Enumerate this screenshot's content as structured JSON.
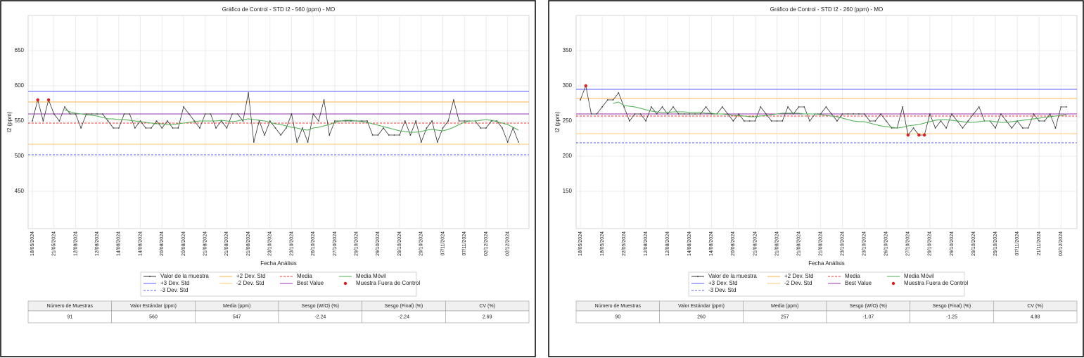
{
  "chart_data": [
    {
      "type": "control",
      "title": "Gráfico de Control - STD I2 - 560 (ppm) - MO",
      "x_label": "Fecha Análisis",
      "y_label": "I2 (ppm)",
      "categories": [
        "18/05/2024",
        null,
        null,
        null,
        "21/05/2024",
        null,
        null,
        null,
        "12/08/2024",
        null,
        null,
        null,
        "12/08/2024",
        null,
        null,
        null,
        "14/08/2024",
        null,
        null,
        null,
        "14/08/2024",
        null,
        null,
        null,
        "20/08/2024",
        null,
        null,
        null,
        "20/08/2024",
        null,
        null,
        null,
        "21/08/2024",
        null,
        null,
        null,
        "21/08/2024",
        null,
        null,
        null,
        "21/08/2024",
        null,
        null,
        null,
        "23/10/2024",
        null,
        null,
        null,
        "23/10/2024",
        null,
        null,
        null,
        "26/10/2024",
        null,
        null,
        null,
        "27/10/2024",
        null,
        null,
        null,
        "29/10/2024",
        null,
        null,
        null,
        "29/10/2024",
        null,
        null,
        null,
        "29/10/2024",
        null,
        null,
        null,
        "29/10/2024",
        null,
        null,
        null,
        "07/11/2024",
        null,
        null,
        null,
        "07/11/2024",
        null,
        null,
        null,
        "02/12/2024",
        null,
        null,
        null,
        "02/12/2024",
        null,
        null
      ],
      "series": [
        {
          "name": "Valor de la muestra",
          "kind": "line-marker",
          "color": "#333333",
          "values": [
            550,
            580,
            550,
            580,
            560,
            550,
            570,
            560,
            560,
            540,
            560,
            560,
            560,
            560,
            550,
            540,
            540,
            560,
            560,
            540,
            550,
            540,
            540,
            550,
            540,
            550,
            540,
            540,
            570,
            560,
            550,
            540,
            560,
            560,
            540,
            550,
            540,
            560,
            560,
            550,
            590,
            520,
            550,
            530,
            550,
            540,
            530,
            540,
            560,
            520,
            540,
            520,
            560,
            550,
            580,
            530,
            550,
            550,
            550,
            550,
            550,
            550,
            550,
            530,
            530,
            540,
            530,
            530,
            530,
            550,
            530,
            550,
            520,
            540,
            550,
            520,
            540,
            550,
            580,
            550,
            550,
            550,
            550,
            540,
            540,
            550,
            550,
            540,
            520,
            540,
            520
          ]
        },
        {
          "name": "Media Móvil",
          "kind": "line",
          "color": "#4caf50",
          "values": [
            null,
            null,
            null,
            null,
            null,
            null,
            566,
            563,
            561,
            560,
            559,
            558,
            557,
            555,
            553,
            553,
            552,
            552,
            551,
            550,
            549,
            548,
            547,
            546,
            546,
            545,
            545,
            546,
            547,
            548,
            549,
            550,
            550,
            550,
            550,
            551,
            550,
            549,
            550,
            552,
            553,
            552,
            551,
            550,
            548,
            546,
            545,
            543,
            541,
            540,
            538,
            537,
            540,
            541,
            543,
            545,
            548,
            550,
            551,
            551,
            550,
            549,
            548,
            546,
            544,
            542,
            540,
            538,
            536,
            535,
            534,
            534,
            535,
            537,
            538,
            537,
            536,
            538,
            541,
            545,
            548,
            550,
            550,
            551,
            552,
            551,
            549,
            547,
            545,
            541,
            537
          ]
        },
        {
          "name": "Muestra Fuera de Control",
          "kind": "marker",
          "color": "#e41a1c",
          "values": [
            null,
            580,
            null,
            580,
            null,
            null,
            null,
            null,
            null,
            null,
            null,
            null,
            null,
            null,
            null,
            null,
            null,
            null,
            null,
            null,
            null,
            null,
            null,
            null,
            null,
            null,
            null,
            null,
            null,
            null,
            null,
            null,
            null,
            null,
            null,
            null,
            null,
            null,
            null,
            null,
            null,
            null,
            null,
            null,
            null,
            null,
            null,
            null,
            null,
            null,
            null,
            null,
            null,
            null,
            null,
            null,
            null,
            null,
            null,
            null,
            null,
            null,
            null,
            null,
            null,
            null,
            null,
            null,
            null,
            null,
            null,
            null,
            null,
            null,
            null,
            null,
            null,
            null,
            null,
            null,
            null,
            null,
            null,
            null,
            null,
            null,
            null,
            null,
            null,
            null,
            null
          ]
        }
      ],
      "reference_lines": [
        {
          "name": "+3 Dev. Std",
          "color": "#5b5bff",
          "style": "solid",
          "value": 592
        },
        {
          "name": "-3 Dev. Std",
          "color": "#5b5bff",
          "style": "dashed",
          "value": 502
        },
        {
          "name": "+2 Dev. Std",
          "color": "#ffb347",
          "style": "solid",
          "value": 577
        },
        {
          "name": "-2 Dev. Std",
          "color": "#ffc875",
          "style": "solid",
          "value": 517
        },
        {
          "name": "Media",
          "color": "#ff3030",
          "style": "dashed",
          "value": 547
        },
        {
          "name": "Best Value",
          "color": "#9b30b0",
          "style": "solid",
          "value": 560
        }
      ],
      "ylim": [
        397,
        700
      ],
      "yticks": [
        450,
        500,
        550,
        600,
        650
      ],
      "grid": true
    },
    {
      "type": "control",
      "title": "Gráfico de Control - STD I2 - 260 (ppm) - MO",
      "x_label": "Fecha Análisis",
      "y_label": "I2 (ppm)",
      "categories": [
        "18/05/2024",
        null,
        null,
        null,
        "18/05/2024",
        null,
        null,
        null,
        "22/05/2024",
        null,
        null,
        null,
        "12/08/2024",
        null,
        null,
        null,
        "12/08/2024",
        null,
        null,
        null,
        "14/08/2024",
        null,
        null,
        null,
        "14/08/2024",
        null,
        null,
        null,
        "20/08/2024",
        null,
        null,
        null,
        "21/08/2024",
        null,
        null,
        null,
        "21/08/2024",
        null,
        null,
        null,
        "21/08/2024",
        null,
        null,
        null,
        "21/08/2024",
        null,
        null,
        null,
        "23/10/2024",
        null,
        null,
        null,
        "23/10/2024",
        null,
        null,
        null,
        "26/10/2024",
        null,
        null,
        null,
        "27/10/2024",
        null,
        null,
        null,
        "29/10/2024",
        null,
        null,
        null,
        "29/10/2024",
        null,
        null,
        null,
        "29/10/2024",
        null,
        null,
        null,
        "29/10/2024",
        null,
        null,
        null,
        "07/11/2024",
        null,
        null,
        null,
        "21/11/2024",
        null,
        null,
        null,
        "02/12/2024",
        null
      ],
      "series": [
        {
          "name": "Valor de la muestra",
          "kind": "line-marker",
          "color": "#333333",
          "values": [
            280,
            300,
            260,
            260,
            270,
            280,
            280,
            290,
            270,
            250,
            260,
            260,
            250,
            270,
            260,
            270,
            260,
            270,
            260,
            260,
            260,
            260,
            260,
            270,
            260,
            260,
            270,
            260,
            250,
            260,
            250,
            250,
            250,
            270,
            260,
            250,
            250,
            250,
            270,
            260,
            270,
            270,
            250,
            260,
            260,
            270,
            260,
            250,
            260,
            260,
            260,
            260,
            260,
            250,
            250,
            260,
            250,
            240,
            240,
            270,
            230,
            240,
            230,
            230,
            260,
            240,
            250,
            240,
            260,
            250,
            240,
            250,
            260,
            270,
            250,
            250,
            240,
            260,
            250,
            240,
            250,
            240,
            240,
            260,
            250,
            250,
            260,
            240,
            270,
            270
          ]
        },
        {
          "name": "Media Móvil",
          "kind": "line",
          "color": "#4caf50",
          "values": [
            null,
            null,
            null,
            null,
            null,
            null,
            275,
            277,
            272,
            271,
            270,
            268,
            266,
            264,
            263,
            262,
            262,
            263,
            263,
            263,
            262,
            262,
            262,
            261,
            261,
            260,
            260,
            259,
            258,
            258,
            257,
            256,
            256,
            257,
            258,
            259,
            260,
            261,
            261,
            261,
            261,
            260,
            260,
            260,
            259,
            258,
            257,
            256,
            254,
            252,
            250,
            249,
            249,
            247,
            245,
            243,
            242,
            241,
            240,
            241,
            243,
            244,
            245,
            247,
            249,
            251,
            252,
            252,
            251,
            250,
            249,
            248,
            248,
            249,
            250,
            250,
            249,
            248,
            248,
            249,
            250,
            251,
            252,
            253,
            254,
            255,
            256,
            257,
            258,
            259
          ]
        },
        {
          "name": "Muestra Fuera de Control",
          "kind": "marker",
          "color": "#e41a1c",
          "values": [
            null,
            300,
            null,
            null,
            null,
            null,
            null,
            null,
            null,
            null,
            null,
            null,
            null,
            null,
            null,
            null,
            null,
            null,
            null,
            null,
            null,
            null,
            null,
            null,
            null,
            null,
            null,
            null,
            null,
            null,
            null,
            null,
            null,
            null,
            null,
            null,
            null,
            null,
            null,
            null,
            null,
            null,
            null,
            null,
            null,
            null,
            null,
            null,
            null,
            null,
            null,
            null,
            null,
            null,
            null,
            null,
            null,
            null,
            null,
            null,
            230,
            null,
            230,
            230,
            null,
            null,
            null,
            null,
            null,
            null,
            null,
            null,
            null,
            null,
            null,
            null,
            null,
            null,
            null,
            null,
            null,
            null,
            null,
            null,
            null,
            null,
            null,
            null,
            null,
            null
          ]
        }
      ],
      "reference_lines": [
        {
          "name": "+3 Dev. Std",
          "color": "#5b5bff",
          "style": "solid",
          "value": 295
        },
        {
          "name": "-3 Dev. Std",
          "color": "#5b5bff",
          "style": "dashed",
          "value": 219
        },
        {
          "name": "+2 Dev. Std",
          "color": "#ffb347",
          "style": "solid",
          "value": 282
        },
        {
          "name": "-2 Dev. Std",
          "color": "#ffc875",
          "style": "solid",
          "value": 232
        },
        {
          "name": "Media",
          "color": "#ff3030",
          "style": "dashed",
          "value": 257
        },
        {
          "name": "Best Value",
          "color": "#9b30b0",
          "style": "solid",
          "value": 260
        }
      ],
      "ylim": [
        97,
        400
      ],
      "yticks": [
        150,
        200,
        250,
        300,
        350
      ],
      "grid": true
    }
  ],
  "tables": [
    {
      "headers": [
        "Número de Muestras",
        "Valor Estándar (ppm)",
        "Media (ppm)",
        "Sesgo (W/O) (%)",
        "Sesgo (Final) (%)",
        "CV (%)"
      ],
      "rows": [
        [
          91,
          560,
          547,
          -2.24,
          -2.24,
          2.69
        ]
      ]
    },
    {
      "headers": [
        "Número de Muestras",
        "Valor Estándar (ppm)",
        "Media (ppm)",
        "Sesgo (W/O) (%)",
        "Sesgo (Final) (%)",
        "CV (%)"
      ],
      "rows": [
        [
          90,
          260,
          257,
          -1.07,
          -1.25,
          4.88
        ]
      ]
    }
  ]
}
